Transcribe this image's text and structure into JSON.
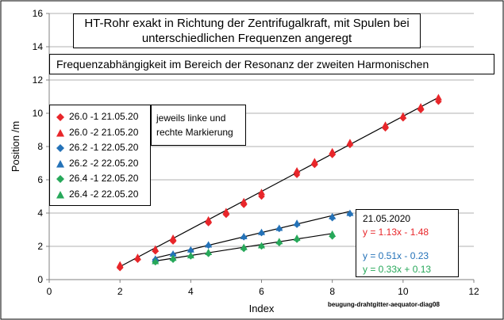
{
  "chart_data": {
    "type": "scatter",
    "title": "HT-Rohr exakt in Richtung der Zentrifugalkraft, mit Spulen bei unterschiedlichen Frequenzen angeregt",
    "title_lines": [
      "HT-Rohr exakt in Richtung der Zentrifugalkraft, mit Spulen bei",
      "unterschiedlichen Frequenzen angeregt"
    ],
    "subtitle": "Frequenzabhängigkeit im Bereich der Resonanz der zweiten Harmonischen",
    "xlabel": "Index",
    "ylabel": "Position /m",
    "xlim": [
      0,
      12
    ],
    "ylim": [
      0,
      16
    ],
    "xticks": [
      0,
      2,
      4,
      6,
      8,
      10,
      12
    ],
    "yticks": [
      0,
      2,
      4,
      6,
      8,
      10,
      12,
      14,
      16
    ],
    "grid": true,
    "legend_position": "upper-left",
    "note_lines": [
      "jeweils linke und",
      "rechte Markierung"
    ],
    "equation_date": "21.05.2020",
    "source_label": "beugung-drahtgitter-aequator-diag08",
    "series": [
      {
        "name": "26.0 -1  21.05.20",
        "marker": "diamond",
        "color": "#e8262a",
        "x": [
          2,
          2.5,
          3,
          3.5,
          4.5,
          5,
          5.5,
          6,
          7,
          7.5,
          8,
          8.5,
          9.5,
          10,
          10.5,
          11
        ],
        "y": [
          0.7,
          1.2,
          1.7,
          2.3,
          3.4,
          3.9,
          4.5,
          5.0,
          6.3,
          6.9,
          7.5,
          8.1,
          9.1,
          9.7,
          10.2,
          10.7
        ]
      },
      {
        "name": "26.0 -2  21.05.20",
        "marker": "triangle",
        "color": "#e8262a",
        "x": [
          2,
          2.5,
          3,
          3.5,
          4.5,
          5,
          5.5,
          6,
          7,
          7.5,
          8,
          8.5,
          9.5,
          10,
          10.5,
          11
        ],
        "y": [
          0.9,
          1.35,
          1.85,
          2.5,
          3.6,
          4.1,
          4.7,
          5.25,
          6.55,
          7.1,
          7.7,
          8.25,
          9.3,
          9.85,
          10.4,
          10.95
        ]
      },
      {
        "name": "26.2 -1  22.05.20",
        "marker": "diamond",
        "color": "#2472b8",
        "x": [
          3,
          3.5,
          4,
          4.5,
          5.5,
          6,
          6.5,
          7,
          8,
          8.5
        ],
        "y": [
          1.2,
          1.5,
          1.75,
          2.05,
          2.55,
          2.8,
          3.05,
          3.3,
          3.7,
          3.95
        ]
      },
      {
        "name": "26.2 -2  22.05.20",
        "marker": "triangle",
        "color": "#2472b8",
        "x": [
          3,
          3.5,
          4,
          4.5,
          5.5,
          6,
          6.5,
          7,
          8,
          8.5
        ],
        "y": [
          1.25,
          1.55,
          1.8,
          2.1,
          2.6,
          2.85,
          3.1,
          3.4,
          3.8,
          4.0
        ]
      },
      {
        "name": "26.4 -1  22.05.20",
        "marker": "diamond",
        "color": "#27a85a",
        "x": [
          3,
          3.5,
          4,
          4.5,
          5.5,
          6,
          6.5,
          7,
          8
        ],
        "y": [
          1.05,
          1.2,
          1.4,
          1.55,
          1.85,
          2.0,
          2.2,
          2.4,
          2.6
        ]
      },
      {
        "name": "26.4 -2  22.05.20",
        "marker": "triangle",
        "color": "#27a85a",
        "x": [
          3,
          3.5,
          4,
          4.5,
          5.5,
          6,
          6.5,
          7,
          8
        ],
        "y": [
          1.1,
          1.3,
          1.45,
          1.65,
          1.95,
          2.05,
          2.3,
          2.5,
          2.75
        ]
      }
    ],
    "trendlines": [
      {
        "label": "y = 1.13x - 1.48",
        "slope": 1.13,
        "intercept": -1.48,
        "x_range": [
          2,
          11
        ],
        "color": "#e8262a"
      },
      {
        "label": "y = 0.51x - 0.23",
        "slope": 0.51,
        "intercept": -0.23,
        "x_range": [
          3,
          8.5
        ],
        "color": "#2472b8"
      },
      {
        "label": "y = 0.33x + 0.13",
        "slope": 0.33,
        "intercept": 0.13,
        "x_range": [
          3,
          8
        ],
        "color": "#27a85a"
      }
    ]
  }
}
